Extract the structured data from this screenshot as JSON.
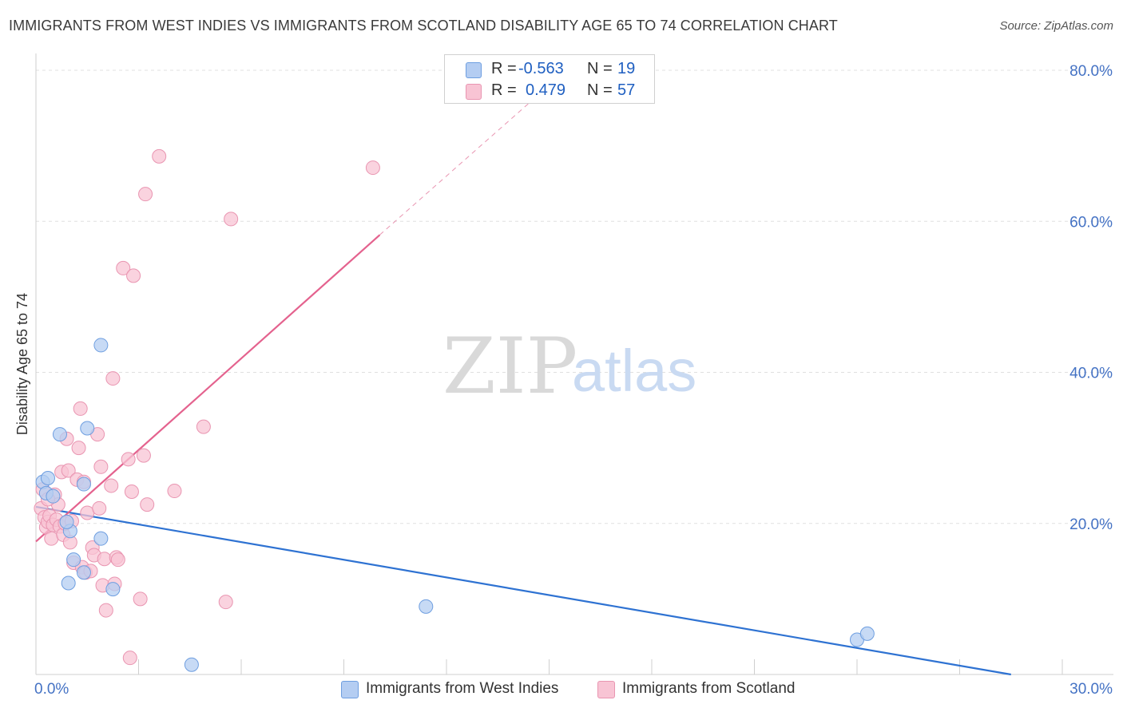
{
  "title": "IMMIGRANTS FROM WEST INDIES VS IMMIGRANTS FROM SCOTLAND DISABILITY AGE 65 TO 74 CORRELATION CHART",
  "source": "Source: ZipAtlas.com",
  "watermark": {
    "zip": "ZIP",
    "atlas": "atlas"
  },
  "colors": {
    "blue_fill": "#b4cdf2",
    "blue_stroke": "#6e9ee0",
    "blue_line": "#2e72d2",
    "pink_fill": "#f8c4d4",
    "pink_stroke": "#e995b1",
    "pink_line": "#e4628e",
    "axis_text": "#4472c4",
    "grid": "#e0e0e0"
  },
  "legend": {
    "rows": [
      {
        "r_label": "R =",
        "r_value": "-0.563",
        "n_label": "N =",
        "n_value": "19",
        "color": "#b4cdf2"
      },
      {
        "r_label": "R =",
        "r_value": "0.479",
        "n_label": "N =",
        "n_value": "57",
        "color": "#f8c4d4"
      }
    ]
  },
  "bottom_legend": [
    {
      "label": "Immigrants from West Indies",
      "color": "#b4cdf2"
    },
    {
      "label": "Immigrants from Scotland",
      "color": "#f8c4d4"
    }
  ],
  "chart_data": {
    "type": "scatter",
    "title": "IMMIGRANTS FROM WEST INDIES VS IMMIGRANTS FROM SCOTLAND DISABILITY AGE 65 TO 74 CORRELATION CHART",
    "xlabel": "",
    "ylabel": "Disability Age 65 to 74",
    "xlim": [
      0,
      30
    ],
    "ylim": [
      0,
      80
    ],
    "x_tick_labels": [
      "0.0%",
      "30.0%"
    ],
    "y_ticks": [
      20,
      40,
      60,
      80
    ],
    "y_tick_labels": [
      "20.0%",
      "40.0%",
      "60.0%",
      "80.0%"
    ],
    "series": [
      {
        "name": "Immigrants from West Indies",
        "r": -0.563,
        "n": 19,
        "trend": {
          "x0": 0.0,
          "y0": 22.2,
          "x1": 28.5,
          "y1": 0.0,
          "dashed_extension": false
        },
        "points": [
          [
            0.2,
            25.5
          ],
          [
            0.3,
            24.0
          ],
          [
            0.35,
            26.0
          ],
          [
            0.5,
            23.6
          ],
          [
            0.7,
            31.8
          ],
          [
            1.0,
            19.0
          ],
          [
            1.1,
            15.2
          ],
          [
            0.9,
            20.2
          ],
          [
            0.95,
            12.1
          ],
          [
            1.4,
            13.5
          ],
          [
            1.4,
            25.2
          ],
          [
            1.5,
            32.6
          ],
          [
            1.9,
            18.0
          ],
          [
            1.9,
            43.6
          ],
          [
            2.25,
            11.3
          ],
          [
            4.55,
            1.3
          ],
          [
            11.4,
            9.0
          ],
          [
            24.0,
            4.6
          ],
          [
            24.3,
            5.4
          ]
        ]
      },
      {
        "name": "Immigrants from Scotland",
        "r": 0.479,
        "n": 57,
        "trend": {
          "x0": 0.0,
          "y0": 17.6,
          "x1": 10.05,
          "y1": 58.2,
          "dashed_extension": true,
          "x2": 14.5,
          "y2": 76.0
        },
        "points": [
          [
            0.15,
            22.0
          ],
          [
            0.2,
            24.5
          ],
          [
            0.25,
            20.8
          ],
          [
            0.3,
            19.5
          ],
          [
            0.35,
            20.2
          ],
          [
            0.4,
            21.0
          ],
          [
            0.45,
            18.0
          ],
          [
            0.5,
            19.8
          ],
          [
            0.6,
            20.5
          ],
          [
            0.55,
            23.8
          ],
          [
            0.65,
            22.5
          ],
          [
            0.7,
            19.6
          ],
          [
            0.75,
            26.8
          ],
          [
            0.8,
            18.5
          ],
          [
            0.9,
            31.2
          ],
          [
            0.85,
            20.0
          ],
          [
            0.95,
            27.0
          ],
          [
            1.0,
            17.5
          ],
          [
            1.1,
            14.8
          ],
          [
            1.2,
            25.8
          ],
          [
            1.25,
            30.0
          ],
          [
            1.3,
            35.2
          ],
          [
            1.35,
            14.2
          ],
          [
            1.4,
            25.5
          ],
          [
            1.45,
            13.5
          ],
          [
            1.5,
            21.4
          ],
          [
            1.6,
            13.7
          ],
          [
            1.65,
            16.8
          ],
          [
            1.7,
            15.8
          ],
          [
            1.8,
            31.8
          ],
          [
            1.85,
            22.0
          ],
          [
            1.9,
            27.5
          ],
          [
            1.95,
            11.8
          ],
          [
            2.0,
            15.3
          ],
          [
            2.05,
            8.5
          ],
          [
            2.2,
            25.0
          ],
          [
            2.25,
            39.2
          ],
          [
            2.3,
            12.0
          ],
          [
            2.35,
            15.5
          ],
          [
            2.4,
            15.2
          ],
          [
            2.55,
            53.8
          ],
          [
            2.7,
            28.5
          ],
          [
            2.75,
            2.2
          ],
          [
            2.8,
            24.2
          ],
          [
            2.85,
            52.8
          ],
          [
            3.05,
            10.0
          ],
          [
            3.15,
            29.0
          ],
          [
            3.2,
            63.6
          ],
          [
            3.25,
            22.5
          ],
          [
            3.6,
            68.6
          ],
          [
            4.05,
            24.3
          ],
          [
            4.9,
            32.8
          ],
          [
            5.55,
            9.6
          ],
          [
            5.7,
            60.3
          ],
          [
            9.85,
            67.1
          ],
          [
            1.05,
            20.3
          ],
          [
            0.35,
            23.2
          ]
        ]
      }
    ]
  }
}
